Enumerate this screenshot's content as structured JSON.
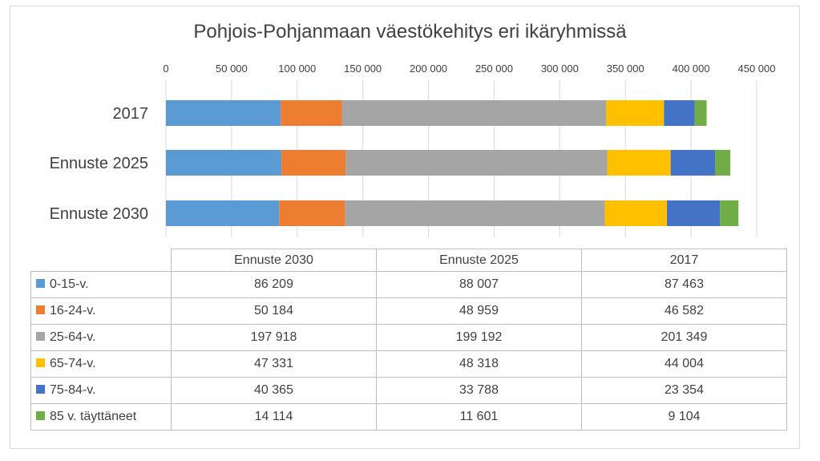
{
  "chart_data": {
    "type": "bar",
    "orientation": "horizontal",
    "stacked": true,
    "title": "Pohjois-Pohjanmaan väestökehitys eri ikäryhmissä",
    "categories": [
      "2017",
      "Ennuste 2025",
      "Ennuste 2030"
    ],
    "x_ticks": [
      "0",
      "50 000",
      "100 000",
      "150 000",
      "200 000",
      "250 000",
      "300 000",
      "350 000",
      "400 000",
      "450 000"
    ],
    "xlim": [
      0,
      450000
    ],
    "x_axis_position": "top",
    "grid": true,
    "legend": "data-table",
    "series": [
      {
        "name": "0-15-v.",
        "color": "#5b9bd5",
        "values": [
          87463,
          88007,
          86209
        ],
        "labels": [
          "87 463",
          "88 007",
          "86 209"
        ]
      },
      {
        "name": "16-24-v.",
        "color": "#ed7d31",
        "values": [
          46582,
          48959,
          50184
        ],
        "labels": [
          "46 582",
          "48 959",
          "50 184"
        ]
      },
      {
        "name": "25-64-v.",
        "color": "#a5a5a5",
        "values": [
          201349,
          199192,
          197918
        ],
        "labels": [
          "201 349",
          "199 192",
          "197 918"
        ]
      },
      {
        "name": "65-74-v.",
        "color": "#ffc000",
        "values": [
          44004,
          48318,
          47331
        ],
        "labels": [
          "44 004",
          "48 318",
          "47 331"
        ]
      },
      {
        "name": "75-84-v.",
        "color": "#4472c4",
        "values": [
          23354,
          33788,
          40365
        ],
        "labels": [
          "23 354",
          "33 788",
          "40 365"
        ]
      },
      {
        "name": "85 v. täyttäneet",
        "color": "#70ad47",
        "values": [
          9104,
          11601,
          14114
        ],
        "labels": [
          "9 104",
          "11 601",
          "14 114"
        ]
      }
    ],
    "table_columns": [
      "Ennuste 2030",
      "Ennuste 2025",
      "2017"
    ]
  }
}
